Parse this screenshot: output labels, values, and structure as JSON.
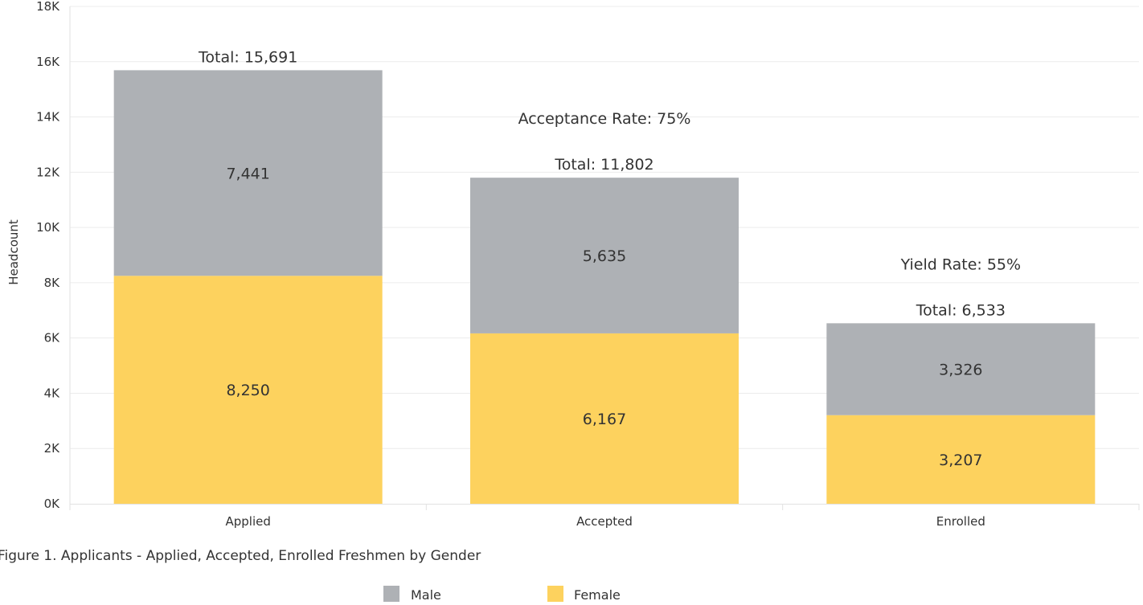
{
  "chart_data": {
    "type": "bar",
    "stacked": true,
    "categories": [
      "Applied",
      "Accepted",
      "Enrolled"
    ],
    "series": [
      {
        "name": "Female",
        "values": [
          8250,
          6167,
          3207
        ],
        "color": "#FDD25E"
      },
      {
        "name": "Male",
        "values": [
          7441,
          5635,
          3326
        ],
        "color": "#AEB1B5"
      }
    ],
    "segment_labels": {
      "Female": [
        "8,250",
        "6,167",
        "3,207"
      ],
      "Male": [
        "7,441",
        "5,635",
        "3,326"
      ]
    },
    "totals": [
      "Total: 15,691",
      "Total: 11,802",
      "Total: 6,533"
    ],
    "annotations": [
      "",
      "Acceptance Rate: 75%",
      "Yield Rate: 55%"
    ],
    "ylabel": "Headcount",
    "xlabel": "",
    "ylim": [
      0,
      18000
    ],
    "yticks": [
      0,
      2000,
      4000,
      6000,
      8000,
      10000,
      12000,
      14000,
      16000,
      18000
    ],
    "ytick_labels": [
      "0K",
      "2K",
      "4K",
      "6K",
      "8K",
      "10K",
      "12K",
      "14K",
      "16K",
      "18K"
    ],
    "grid": true,
    "caption": "Figure 1. Applicants - Applied, Accepted, Enrolled Freshmen by Gender",
    "legend": {
      "placement": "bottom-center",
      "items": [
        {
          "label": "Male",
          "color": "#AEB1B5"
        },
        {
          "label": "Female",
          "color": "#FDD25E"
        }
      ]
    }
  }
}
